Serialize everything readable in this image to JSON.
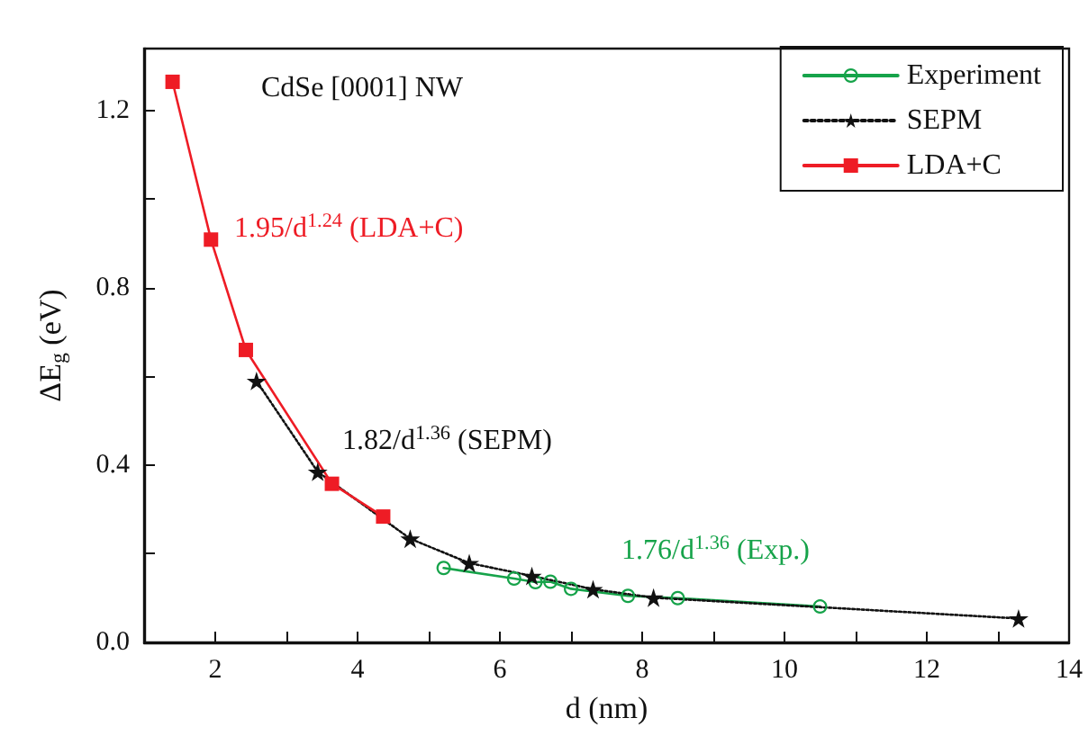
{
  "chart_data": {
    "type": "line",
    "title": "CdSe [0001] NW",
    "xlabel": "d (nm)",
    "ylabel": "ΔE$_{g}$ (eV)",
    "xlim": [
      1,
      14
    ],
    "ylim": [
      0,
      1.34
    ],
    "xticks": [
      {
        "value": 1,
        "label": null
      },
      2,
      {
        "value": 3,
        "label": null
      },
      4,
      {
        "value": 5,
        "label": null
      },
      6,
      {
        "value": 7,
        "label": null
      },
      8,
      {
        "value": 9,
        "label": null
      },
      10,
      {
        "value": 11,
        "label": null
      },
      12,
      {
        "value": 13,
        "label": null
      },
      14
    ],
    "yticks": [
      {
        "value": 0,
        "label": "0.0"
      },
      {
        "value": 0.2,
        "label": null
      },
      {
        "value": 0.4,
        "label": "0.4"
      },
      {
        "value": 0.6,
        "label": null
      },
      {
        "value": 0.8,
        "label": "0.8"
      },
      {
        "value": 1.0,
        "label": null
      },
      {
        "value": 1.2,
        "label": "1.2"
      }
    ],
    "grid": false,
    "legend": "top right",
    "series": [
      {
        "name": "Experiment",
        "color": "#16a34a",
        "marker": "circle",
        "line_style": "solid",
        "x": [
          5.21,
          6.2,
          6.5,
          6.71,
          7.0,
          7.8,
          8.5,
          10.5
        ],
        "values": [
          0.168,
          0.144,
          0.136,
          0.137,
          0.121,
          0.105,
          0.1,
          0.081
        ]
      },
      {
        "name": "SEPM",
        "color": "#111111",
        "marker": "star",
        "line_style": "dotted",
        "x": [
          2.58,
          3.44,
          4.74,
          5.57,
          6.45,
          7.31,
          8.16,
          13.29
        ],
        "values": [
          0.59,
          0.385,
          0.234,
          0.179,
          0.15,
          0.12,
          0.101,
          0.054
        ]
      },
      {
        "name": "LDA+C",
        "color": "#ee1c25",
        "marker": "square",
        "line_style": "solid",
        "x": [
          1.4,
          1.94,
          2.43,
          3.64,
          4.36
        ],
        "values": [
          1.265,
          0.909,
          0.66,
          0.358,
          0.284
        ]
      }
    ],
    "annotations": [
      "1.76/d$^{1.36}$ (Exp.)",
      "1.82/d$^{1.36}$ (SEPM)",
      "1.95/d$^{1.24}$ (LDA+C)"
    ]
  }
}
